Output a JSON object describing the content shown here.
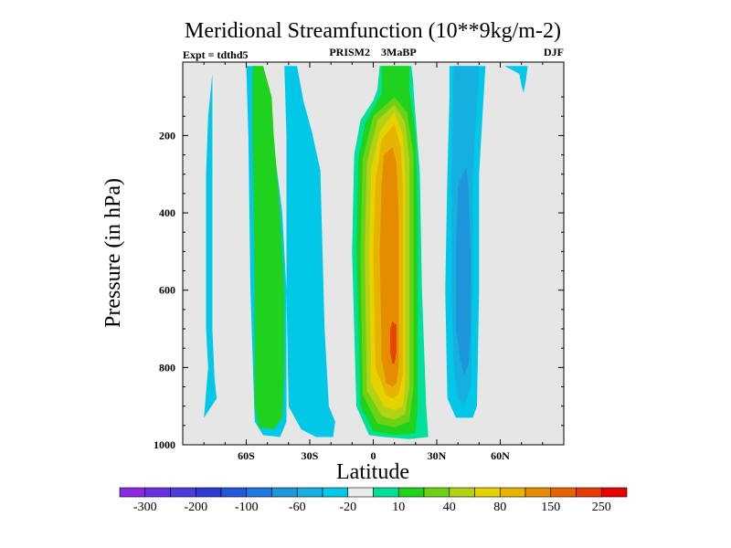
{
  "chart_data": {
    "type": "heatmap",
    "title": "Meridional Streamfunction (10**9kg/m-2)",
    "subtitle_left": "Expt = tdthd5",
    "subtitle_center": "PRISM2    3MaBP",
    "subtitle_right": "DJF",
    "xlabel": "Latitude",
    "ylabel": "Pressure (in hPa)",
    "x_ticks": [
      {
        "value": -60,
        "label": "60S"
      },
      {
        "value": -30,
        "label": "30S"
      },
      {
        "value": 0,
        "label": "0"
      },
      {
        "value": 30,
        "label": "30N"
      },
      {
        "value": 60,
        "label": "60N"
      }
    ],
    "y_ticks": [
      {
        "value": 200,
        "label": "200"
      },
      {
        "value": 400,
        "label": "400"
      },
      {
        "value": 600,
        "label": "600"
      },
      {
        "value": 800,
        "label": "800"
      },
      {
        "value": 1000,
        "label": "1000"
      }
    ],
    "xlim": [
      -90,
      90
    ],
    "ylim": [
      1000,
      10
    ],
    "colorbar": {
      "colors": [
        "#8a2be2",
        "#6a2fe0",
        "#4b3cdc",
        "#2f3ad4",
        "#2358dc",
        "#1e78e0",
        "#1e96dc",
        "#16b0e0",
        "#00c8e6",
        "#ebebeb",
        "#00e09a",
        "#1ed21e",
        "#6ed214",
        "#b4d214",
        "#e6d200",
        "#e6b400",
        "#e68c00",
        "#e66400",
        "#e63c00",
        "#e60000"
      ],
      "labels": [
        {
          "after": 0,
          "text": "-300"
        },
        {
          "after": 2,
          "text": "-200"
        },
        {
          "after": 4,
          "text": "-100"
        },
        {
          "after": 6,
          "text": "-60"
        },
        {
          "after": 8,
          "text": "-20"
        },
        {
          "after": 10,
          "text": "10"
        },
        {
          "after": 12,
          "text": "40"
        },
        {
          "after": 14,
          "text": "80"
        },
        {
          "after": 16,
          "text": "150"
        },
        {
          "after": 18,
          "text": "250"
        }
      ]
    },
    "regions": [
      {
        "name": "shade-sh-polar-cell",
        "color": "#00c8e6",
        "pts": [
          [
            -80,
            930
          ],
          [
            -78,
            800
          ],
          [
            -79,
            700
          ],
          [
            -79,
            300
          ],
          [
            -78,
            150
          ],
          [
            -76,
            40
          ],
          [
            -76,
            300
          ],
          [
            -76,
            700
          ],
          [
            -75,
            830
          ],
          [
            -74,
            880
          ]
        ]
      },
      {
        "name": "shade-sh-ferrel-outer",
        "color": "#00c8e6",
        "pts": [
          [
            -60,
            20
          ],
          [
            -55,
            20
          ],
          [
            -48,
            180
          ],
          [
            -43,
            400
          ],
          [
            -41,
            600
          ],
          [
            -41,
            800
          ],
          [
            -41,
            940
          ],
          [
            -44,
            980
          ],
          [
            -52,
            975
          ],
          [
            -56,
            940
          ],
          [
            -58,
            600
          ],
          [
            -59,
            200
          ]
        ]
      },
      {
        "name": "shade-sh-ferrel-core",
        "color": "#1ed21e",
        "pts": [
          [
            -57,
            20
          ],
          [
            -52,
            20
          ],
          [
            -48,
            100
          ],
          [
            -47,
            200
          ],
          [
            -44,
            400
          ],
          [
            -42,
            600
          ],
          [
            -42,
            800
          ],
          [
            -43,
            930
          ],
          [
            -47,
            960
          ],
          [
            -54,
            955
          ],
          [
            -56,
            900
          ],
          [
            -56,
            600
          ],
          [
            -57,
            200
          ]
        ]
      },
      {
        "name": "shade-sh-hadley",
        "color": "#00c8e6",
        "pts": [
          [
            -42,
            20
          ],
          [
            -36,
            20
          ],
          [
            -33,
            110
          ],
          [
            -29,
            190
          ],
          [
            -25,
            290
          ],
          [
            -23,
            700
          ],
          [
            -21,
            900
          ],
          [
            -18,
            940
          ],
          [
            -19,
            980
          ],
          [
            -27,
            980
          ],
          [
            -34,
            960
          ],
          [
            -40,
            900
          ],
          [
            -41,
            600
          ],
          [
            -41,
            200
          ]
        ]
      },
      {
        "name": "shade-nh-hadley-outer",
        "color": "#00e09a",
        "pts": [
          [
            3,
            20
          ],
          [
            18,
            20
          ],
          [
            19,
            70
          ],
          [
            19,
            80
          ],
          [
            22,
            300
          ],
          [
            23,
            600
          ],
          [
            25,
            900
          ],
          [
            26,
            980
          ],
          [
            17,
            985
          ],
          [
            5,
            980
          ],
          [
            -2,
            975
          ],
          [
            -8,
            900
          ],
          [
            -10,
            500
          ],
          [
            -9,
            250
          ],
          [
            -6,
            160
          ],
          [
            0,
            110
          ],
          [
            2,
            80
          ]
        ]
      },
      {
        "name": "shade-nh-hadley-10",
        "color": "#1ed21e",
        "pts": [
          [
            4,
            20
          ],
          [
            17,
            20
          ],
          [
            17,
            80
          ],
          [
            20,
            200
          ],
          [
            21,
            400
          ],
          [
            21,
            700
          ],
          [
            21,
            900
          ],
          [
            20,
            970
          ],
          [
            10,
            975
          ],
          [
            0,
            965
          ],
          [
            -6,
            900
          ],
          [
            -8,
            500
          ],
          [
            -7,
            260
          ],
          [
            -4,
            170
          ],
          [
            1,
            120
          ],
          [
            4,
            90
          ]
        ]
      },
      {
        "name": "shade-nh-hadley-40",
        "color": "#6ed214",
        "pts": [
          [
            0,
            150
          ],
          [
            10,
            100
          ],
          [
            16,
            140
          ],
          [
            19,
            250
          ],
          [
            19,
            600
          ],
          [
            19,
            850
          ],
          [
            17,
            940
          ],
          [
            10,
            955
          ],
          [
            2,
            945
          ],
          [
            -5,
            870
          ],
          [
            -6,
            500
          ],
          [
            -5,
            260
          ]
        ]
      },
      {
        "name": "shade-nh-hadley-60",
        "color": "#b4d214",
        "pts": [
          [
            2,
            160
          ],
          [
            10,
            120
          ],
          [
            15,
            165
          ],
          [
            17,
            260
          ],
          [
            17,
            600
          ],
          [
            17,
            850
          ],
          [
            15,
            920
          ],
          [
            10,
            935
          ],
          [
            4,
            925
          ],
          [
            -3,
            860
          ],
          [
            -4,
            500
          ],
          [
            -3,
            270
          ]
        ]
      },
      {
        "name": "shade-nh-hadley-80",
        "color": "#e6d200",
        "pts": [
          [
            3,
            190
          ],
          [
            10,
            140
          ],
          [
            14,
            200
          ],
          [
            15,
            300
          ],
          [
            15,
            600
          ],
          [
            15,
            850
          ],
          [
            14,
            900
          ],
          [
            10,
            910
          ],
          [
            5,
            900
          ],
          [
            -1,
            840
          ],
          [
            -2,
            500
          ],
          [
            -1,
            290
          ]
        ]
      },
      {
        "name": "shade-nh-hadley-100",
        "color": "#e6b400",
        "pts": [
          [
            4,
            210
          ],
          [
            10,
            170
          ],
          [
            13,
            230
          ],
          [
            14,
            330
          ],
          [
            14,
            600
          ],
          [
            14,
            820
          ],
          [
            12,
            870
          ],
          [
            9,
            880
          ],
          [
            6,
            870
          ],
          [
            1,
            800
          ],
          [
            0,
            500
          ],
          [
            1,
            320
          ]
        ]
      },
      {
        "name": "shade-nh-hadley-150",
        "color": "#e68c00",
        "pts": [
          [
            5,
            250
          ],
          [
            9,
            230
          ],
          [
            11,
            270
          ],
          [
            12,
            400
          ],
          [
            12,
            650
          ],
          [
            12,
            800
          ],
          [
            11,
            840
          ],
          [
            9,
            850
          ],
          [
            6,
            840
          ],
          [
            4,
            780
          ],
          [
            3,
            500
          ],
          [
            4,
            320
          ]
        ]
      },
      {
        "name": "shade-nh-hadley-max",
        "color": "#e64600",
        "pts": [
          [
            9,
            680
          ],
          [
            11,
            690
          ],
          [
            11,
            760
          ],
          [
            10,
            790
          ],
          [
            9,
            790
          ],
          [
            8,
            760
          ],
          [
            8,
            700
          ]
        ]
      },
      {
        "name": "shade-nh-ferrel-outer",
        "color": "#00c8e6",
        "pts": [
          [
            36,
            20
          ],
          [
            53,
            20
          ],
          [
            52,
            110
          ],
          [
            50,
            300
          ],
          [
            50,
            600
          ],
          [
            49,
            900
          ],
          [
            47,
            930
          ],
          [
            39,
            930
          ],
          [
            35,
            880
          ],
          [
            34,
            600
          ],
          [
            35,
            300
          ],
          [
            36,
            100
          ]
        ]
      },
      {
        "name": "shade-nh-ferrel-mid",
        "color": "#16b0e0",
        "pts": [
          [
            38,
            20
          ],
          [
            50,
            20
          ],
          [
            49,
            120
          ],
          [
            47,
            300
          ],
          [
            47,
            600
          ],
          [
            46,
            850
          ],
          [
            43,
            900
          ],
          [
            40,
            880
          ],
          [
            38,
            800
          ],
          [
            37,
            600
          ],
          [
            37,
            300
          ]
        ]
      },
      {
        "name": "shade-nh-ferrel-core",
        "color": "#1e96dc",
        "pts": [
          [
            44,
            280
          ],
          [
            45,
            340
          ],
          [
            46,
            500
          ],
          [
            46,
            700
          ],
          [
            45,
            790
          ],
          [
            43,
            820
          ],
          [
            41,
            780
          ],
          [
            39,
            700
          ],
          [
            39,
            500
          ],
          [
            40,
            330
          ]
        ]
      },
      {
        "name": "shade-nh-polar-upper",
        "color": "#00c8e6",
        "pts": [
          [
            62,
            20
          ],
          [
            73,
            20
          ],
          [
            72,
            60
          ],
          [
            71,
            90
          ],
          [
            70,
            70
          ],
          [
            69,
            40
          ]
        ]
      }
    ]
  }
}
